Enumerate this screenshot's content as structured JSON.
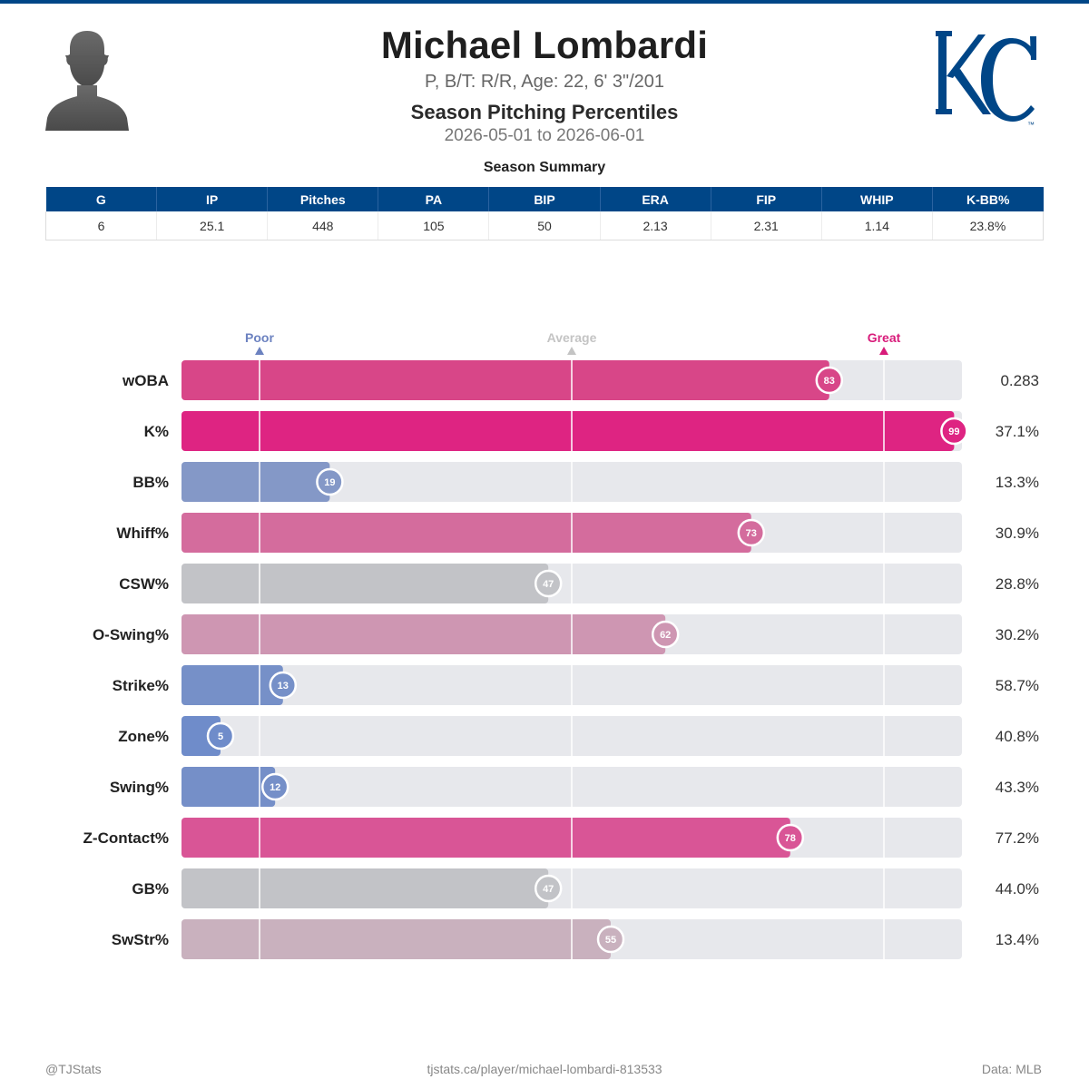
{
  "header": {
    "name": "Michael Lombardi",
    "bio": "P, B/T: R/R, Age: 22, 6' 3\"/201",
    "subtitle": "Season Pitching Percentiles",
    "date_range": "2026-05-01 to 2026-06-01",
    "team_logo": "KC"
  },
  "summary": {
    "title": "Season Summary",
    "columns": [
      "G",
      "IP",
      "Pitches",
      "PA",
      "BIP",
      "ERA",
      "FIP",
      "WHIP",
      "K-BB%"
    ],
    "values": [
      "6",
      "25.1",
      "448",
      "105",
      "50",
      "2.13",
      "2.31",
      "1.14",
      "23.8%"
    ]
  },
  "chart_data": {
    "type": "bar",
    "orientation": "horizontal",
    "xlim": [
      0,
      100
    ],
    "reference_markers": [
      {
        "label": "Poor",
        "value": 10,
        "color": "#6c82c0"
      },
      {
        "label": "Average",
        "value": 50,
        "color": "#c4c4c4"
      },
      {
        "label": "Great",
        "value": 90,
        "color": "#d81b7a"
      }
    ],
    "categories": [
      "wOBA",
      "K%",
      "BB%",
      "Whiff%",
      "CSW%",
      "O-Swing%",
      "Strike%",
      "Zone%",
      "Swing%",
      "Z-Contact%",
      "GB%",
      "SwStr%"
    ],
    "percentiles": [
      83,
      99,
      19,
      73,
      47,
      62,
      13,
      5,
      12,
      78,
      47,
      55
    ],
    "stat_values": [
      "0.283",
      "37.1%",
      "13.3%",
      "30.9%",
      "28.8%",
      "30.2%",
      "58.7%",
      "40.8%",
      "43.3%",
      "77.2%",
      "44.0%",
      "13.4%"
    ],
    "colors": [
      "#d84688",
      "#de2482",
      "#8498c7",
      "#d46c9d",
      "#c2c3c7",
      "#ce96b2",
      "#7690c8",
      "#6f8cca",
      "#758fc8",
      "#d95596",
      "#c2c3c7",
      "#c9b1be"
    ]
  },
  "footer": {
    "left": "@TJStats",
    "center": "tjstats.ca/player/michael-lombardi-813533",
    "right": "Data: MLB"
  }
}
